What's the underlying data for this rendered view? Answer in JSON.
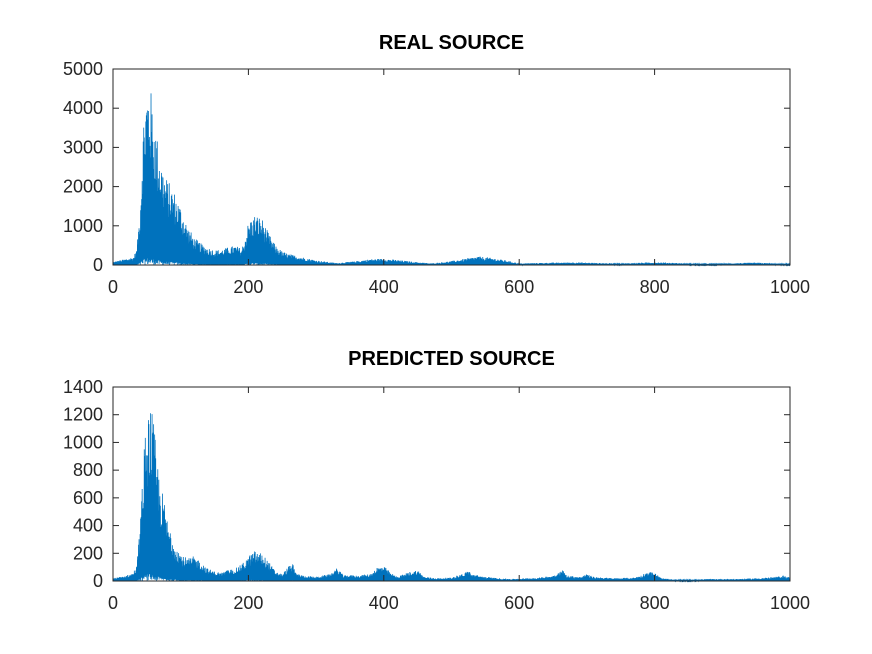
{
  "chart_data": [
    {
      "type": "line",
      "title": "REAL SOURCE",
      "xlabel": "",
      "ylabel": "",
      "xlim": [
        0,
        1000
      ],
      "ylim": [
        0,
        5000
      ],
      "xticks": [
        0,
        200,
        400,
        600,
        800,
        1000
      ],
      "yticks": [
        0,
        1000,
        2000,
        3000,
        4000,
        5000
      ],
      "grid": false,
      "legend": "none",
      "color": "#0072bd",
      "envelope": [
        [
          0,
          80
        ],
        [
          10,
          120
        ],
        [
          20,
          160
        ],
        [
          30,
          200
        ],
        [
          35,
          400
        ],
        [
          40,
          1500
        ],
        [
          45,
          3800
        ],
        [
          50,
          4600
        ],
        [
          55,
          4600
        ],
        [
          60,
          3900
        ],
        [
          65,
          3300
        ],
        [
          70,
          2800
        ],
        [
          75,
          2400
        ],
        [
          80,
          2200
        ],
        [
          90,
          1900
        ],
        [
          100,
          1500
        ],
        [
          110,
          1000
        ],
        [
          120,
          700
        ],
        [
          130,
          550
        ],
        [
          140,
          450
        ],
        [
          150,
          380
        ],
        [
          160,
          400
        ],
        [
          170,
          450
        ],
        [
          180,
          500
        ],
        [
          190,
          420
        ],
        [
          195,
          700
        ],
        [
          200,
          1100
        ],
        [
          210,
          1300
        ],
        [
          220,
          1200
        ],
        [
          230,
          800
        ],
        [
          240,
          500
        ],
        [
          250,
          350
        ],
        [
          260,
          280
        ],
        [
          280,
          200
        ],
        [
          300,
          120
        ],
        [
          330,
          50
        ],
        [
          360,
          100
        ],
        [
          380,
          150
        ],
        [
          400,
          160
        ],
        [
          420,
          130
        ],
        [
          440,
          90
        ],
        [
          470,
          40
        ],
        [
          500,
          100
        ],
        [
          520,
          160
        ],
        [
          540,
          220
        ],
        [
          560,
          180
        ],
        [
          580,
          120
        ],
        [
          600,
          40
        ],
        [
          620,
          50
        ],
        [
          650,
          60
        ],
        [
          680,
          70
        ],
        [
          700,
          60
        ],
        [
          720,
          50
        ],
        [
          750,
          40
        ],
        [
          780,
          60
        ],
        [
          800,
          70
        ],
        [
          820,
          60
        ],
        [
          850,
          40
        ],
        [
          880,
          20
        ],
        [
          900,
          40
        ],
        [
          920,
          50
        ],
        [
          950,
          60
        ],
        [
          980,
          40
        ],
        [
          1000,
          30
        ]
      ]
    },
    {
      "type": "line",
      "title": "PREDICTED SOURCE",
      "xlabel": "",
      "ylabel": "",
      "xlim": [
        0,
        1000
      ],
      "ylim": [
        0,
        1400
      ],
      "xticks": [
        0,
        200,
        400,
        600,
        800,
        1000
      ],
      "yticks": [
        0,
        200,
        400,
        600,
        800,
        1000,
        1200,
        1400
      ],
      "grid": false,
      "legend": "none",
      "color": "#0072bd",
      "envelope": [
        [
          0,
          20
        ],
        [
          10,
          30
        ],
        [
          20,
          40
        ],
        [
          30,
          60
        ],
        [
          35,
          120
        ],
        [
          40,
          400
        ],
        [
          45,
          900
        ],
        [
          50,
          1200
        ],
        [
          55,
          1280
        ],
        [
          60,
          1150
        ],
        [
          65,
          900
        ],
        [
          70,
          700
        ],
        [
          75,
          600
        ],
        [
          80,
          450
        ],
        [
          90,
          300
        ],
        [
          100,
          200
        ],
        [
          110,
          160
        ],
        [
          120,
          180
        ],
        [
          130,
          140
        ],
        [
          140,
          90
        ],
        [
          150,
          70
        ],
        [
          160,
          60
        ],
        [
          170,
          80
        ],
        [
          180,
          90
        ],
        [
          190,
          120
        ],
        [
          200,
          180
        ],
        [
          210,
          220
        ],
        [
          220,
          200
        ],
        [
          230,
          140
        ],
        [
          240,
          70
        ],
        [
          250,
          50
        ],
        [
          260,
          110
        ],
        [
          265,
          130
        ],
        [
          270,
          60
        ],
        [
          280,
          40
        ],
        [
          300,
          30
        ],
        [
          310,
          40
        ],
        [
          320,
          50
        ],
        [
          330,
          90
        ],
        [
          335,
          80
        ],
        [
          340,
          40
        ],
        [
          350,
          45
        ],
        [
          360,
          40
        ],
        [
          380,
          50
        ],
        [
          390,
          100
        ],
        [
          400,
          110
        ],
        [
          410,
          60
        ],
        [
          420,
          30
        ],
        [
          440,
          70
        ],
        [
          450,
          80
        ],
        [
          460,
          30
        ],
        [
          480,
          20
        ],
        [
          500,
          25
        ],
        [
          520,
          60
        ],
        [
          525,
          80
        ],
        [
          530,
          50
        ],
        [
          550,
          30
        ],
        [
          570,
          20
        ],
        [
          590,
          15
        ],
        [
          610,
          20
        ],
        [
          630,
          25
        ],
        [
          650,
          40
        ],
        [
          660,
          70
        ],
        [
          665,
          80
        ],
        [
          670,
          40
        ],
        [
          690,
          30
        ],
        [
          700,
          50
        ],
        [
          710,
          30
        ],
        [
          740,
          20
        ],
        [
          770,
          25
        ],
        [
          780,
          40
        ],
        [
          790,
          70
        ],
        [
          800,
          60
        ],
        [
          810,
          20
        ],
        [
          830,
          10
        ],
        [
          860,
          10
        ],
        [
          880,
          15
        ],
        [
          900,
          15
        ],
        [
          920,
          15
        ],
        [
          950,
          20
        ],
        [
          980,
          30
        ],
        [
          990,
          40
        ],
        [
          1000,
          25
        ]
      ]
    }
  ]
}
